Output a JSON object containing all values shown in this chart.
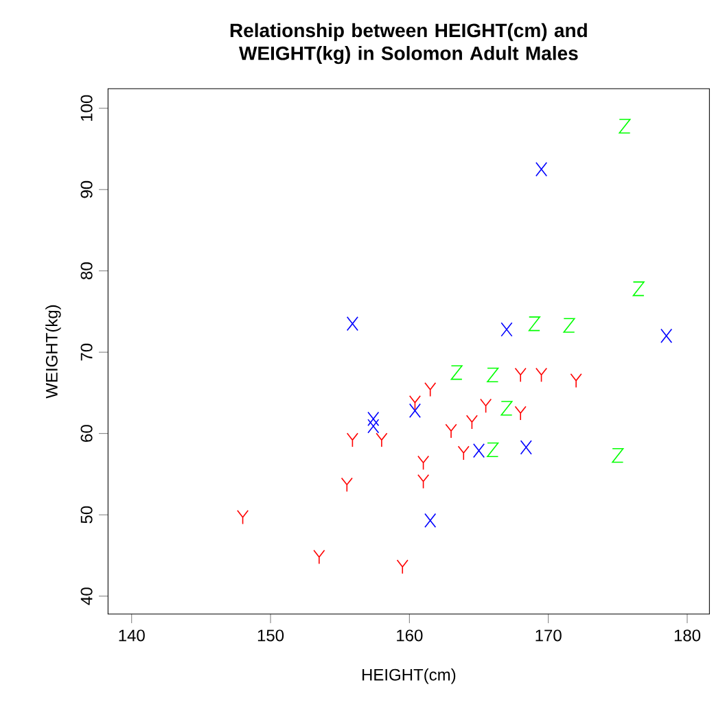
{
  "chart_data": {
    "type": "scatter",
    "title": "Relationship between HEIGHT(cm) and WEIGHT(kg) in Solomon Adult Males",
    "xlabel": "HEIGHT(cm)",
    "ylabel": "WEIGHT(kg)",
    "xlim": [
      138.3,
      181.6
    ],
    "ylim": [
      37.8,
      102.4
    ],
    "xticks": [
      140,
      150,
      160,
      170,
      180
    ],
    "yticks": [
      40,
      50,
      60,
      70,
      80,
      90,
      100
    ],
    "series": [
      {
        "color": "#0000ff",
        "x": [
          169.5,
          155.9,
          167.0,
          178.5,
          160.4,
          157.4,
          157.4,
          165.0,
          168.4,
          161.5
        ],
        "values": [
          92.5,
          73.5,
          72.8,
          72.0,
          62.8,
          61.8,
          60.9,
          57.9,
          58.3,
          49.3
        ]
      },
      {
        "color": "#ff0000",
        "x": [
          168.0,
          169.5,
          172.0,
          161.5,
          160.4,
          165.5,
          168.0,
          164.5,
          163.0,
          155.9,
          158.0,
          163.9,
          161.0,
          161.0,
          155.5,
          148.0,
          153.5,
          159.5
        ],
        "values": [
          67.2,
          67.2,
          66.5,
          65.4,
          63.8,
          63.4,
          62.5,
          61.4,
          60.3,
          59.2,
          59.2,
          57.6,
          56.4,
          54.1,
          53.7,
          49.7,
          44.8,
          43.6
        ]
      },
      {
        "color": "#00ff00",
        "x": [
          175.5,
          176.5,
          169.0,
          171.5,
          163.4,
          166.0,
          167.0,
          166.0,
          175.0
        ],
        "values": [
          97.8,
          77.8,
          73.5,
          73.3,
          67.5,
          67.2,
          63.1,
          58.0,
          57.3
        ]
      }
    ]
  }
}
